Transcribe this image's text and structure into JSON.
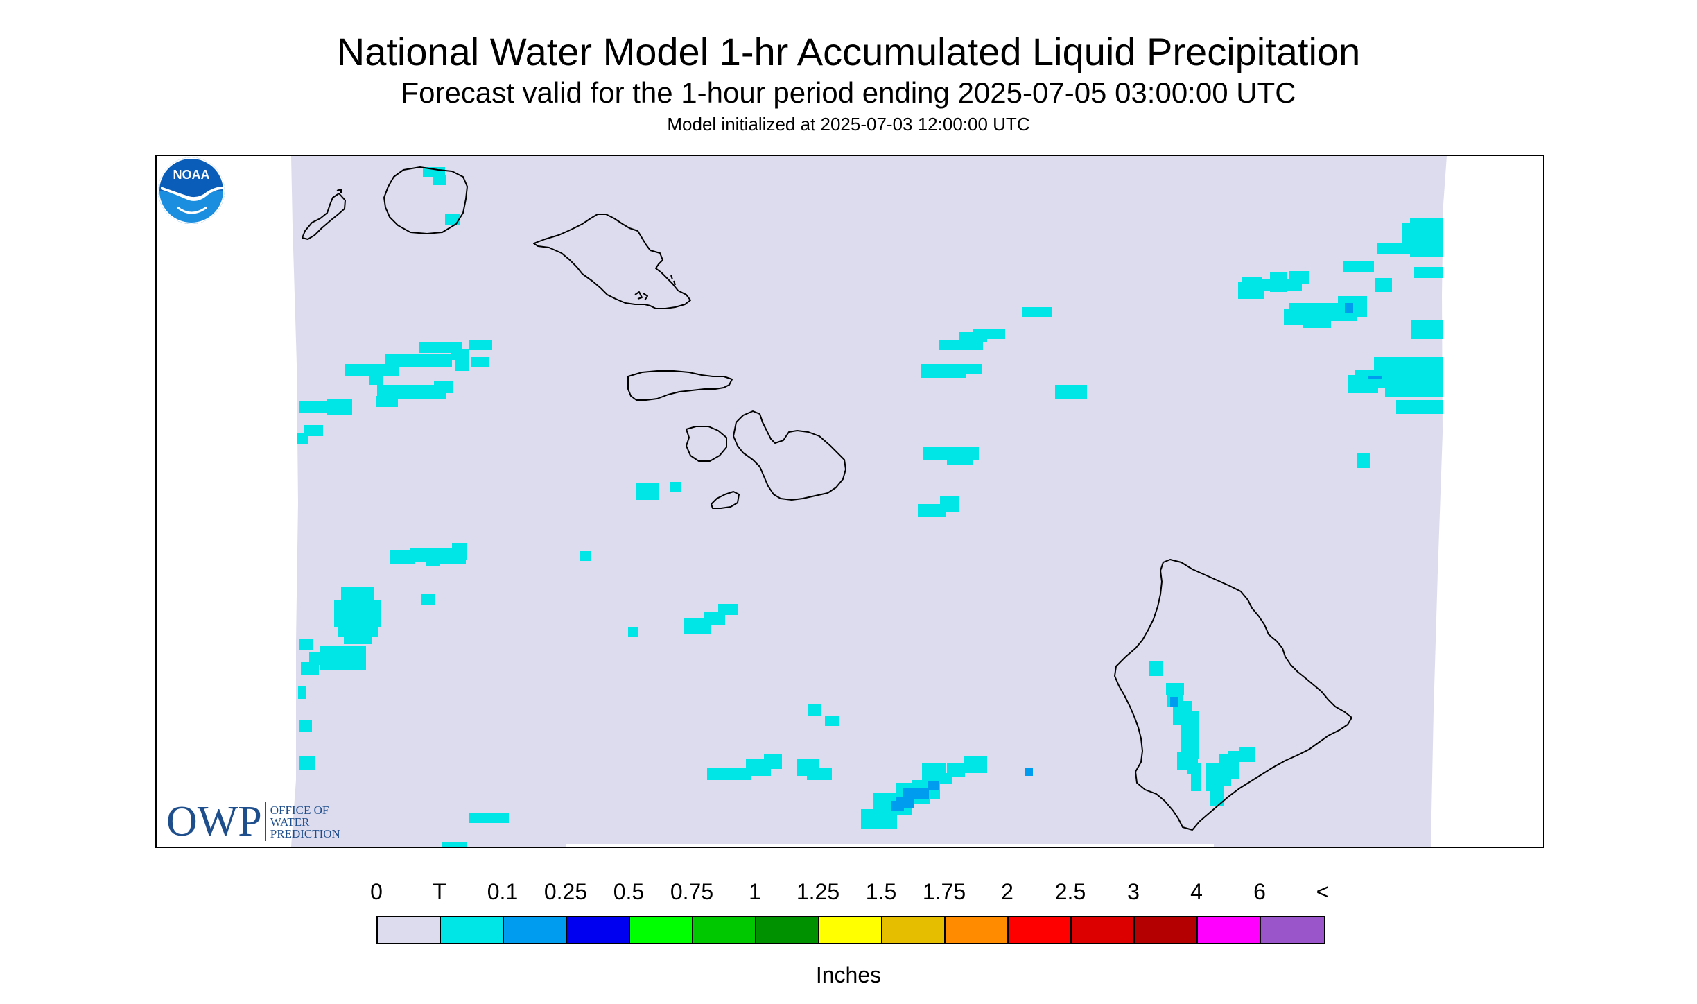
{
  "header": {
    "title": "National Water Model 1-hr Accumulated Liquid Precipitation",
    "subtitle": "Forecast valid for the 1-hour period ending 2025-07-05 03:00:00 UTC",
    "init_line": "Model initialized at 2025-07-03 12:00:00 UTC"
  },
  "map": {
    "region": "Hawaiian Islands",
    "background_color": "#dcdcee",
    "outside_domain_color": "#ffffff",
    "coastline_color": "#000000",
    "precip_colors": {
      "T": "#00e5e5",
      "0.1": "#009cf0",
      "0.25": "#0000f0"
    }
  },
  "logos": {
    "owp": {
      "letters": "OWP",
      "lines": [
        "OFFICE OF",
        "WATER",
        "PREDICTION"
      ]
    },
    "noaa": {
      "text": "NOAA"
    }
  },
  "legend": {
    "labels": [
      "0",
      "T",
      "0.1",
      "0.25",
      "0.5",
      "0.75",
      "1",
      "1.25",
      "1.5",
      "1.75",
      "2",
      "2.5",
      "3",
      "4",
      "6",
      "<"
    ],
    "colors": [
      "#dcdcee",
      "#00e5e5",
      "#009cf0",
      "#0000f0",
      "#00ff00",
      "#00c800",
      "#009100",
      "#ffff00",
      "#e6be00",
      "#ff8c00",
      "#ff0000",
      "#dc0000",
      "#b40000",
      "#ff00ff",
      "#9955c9"
    ],
    "units": "Inches"
  }
}
